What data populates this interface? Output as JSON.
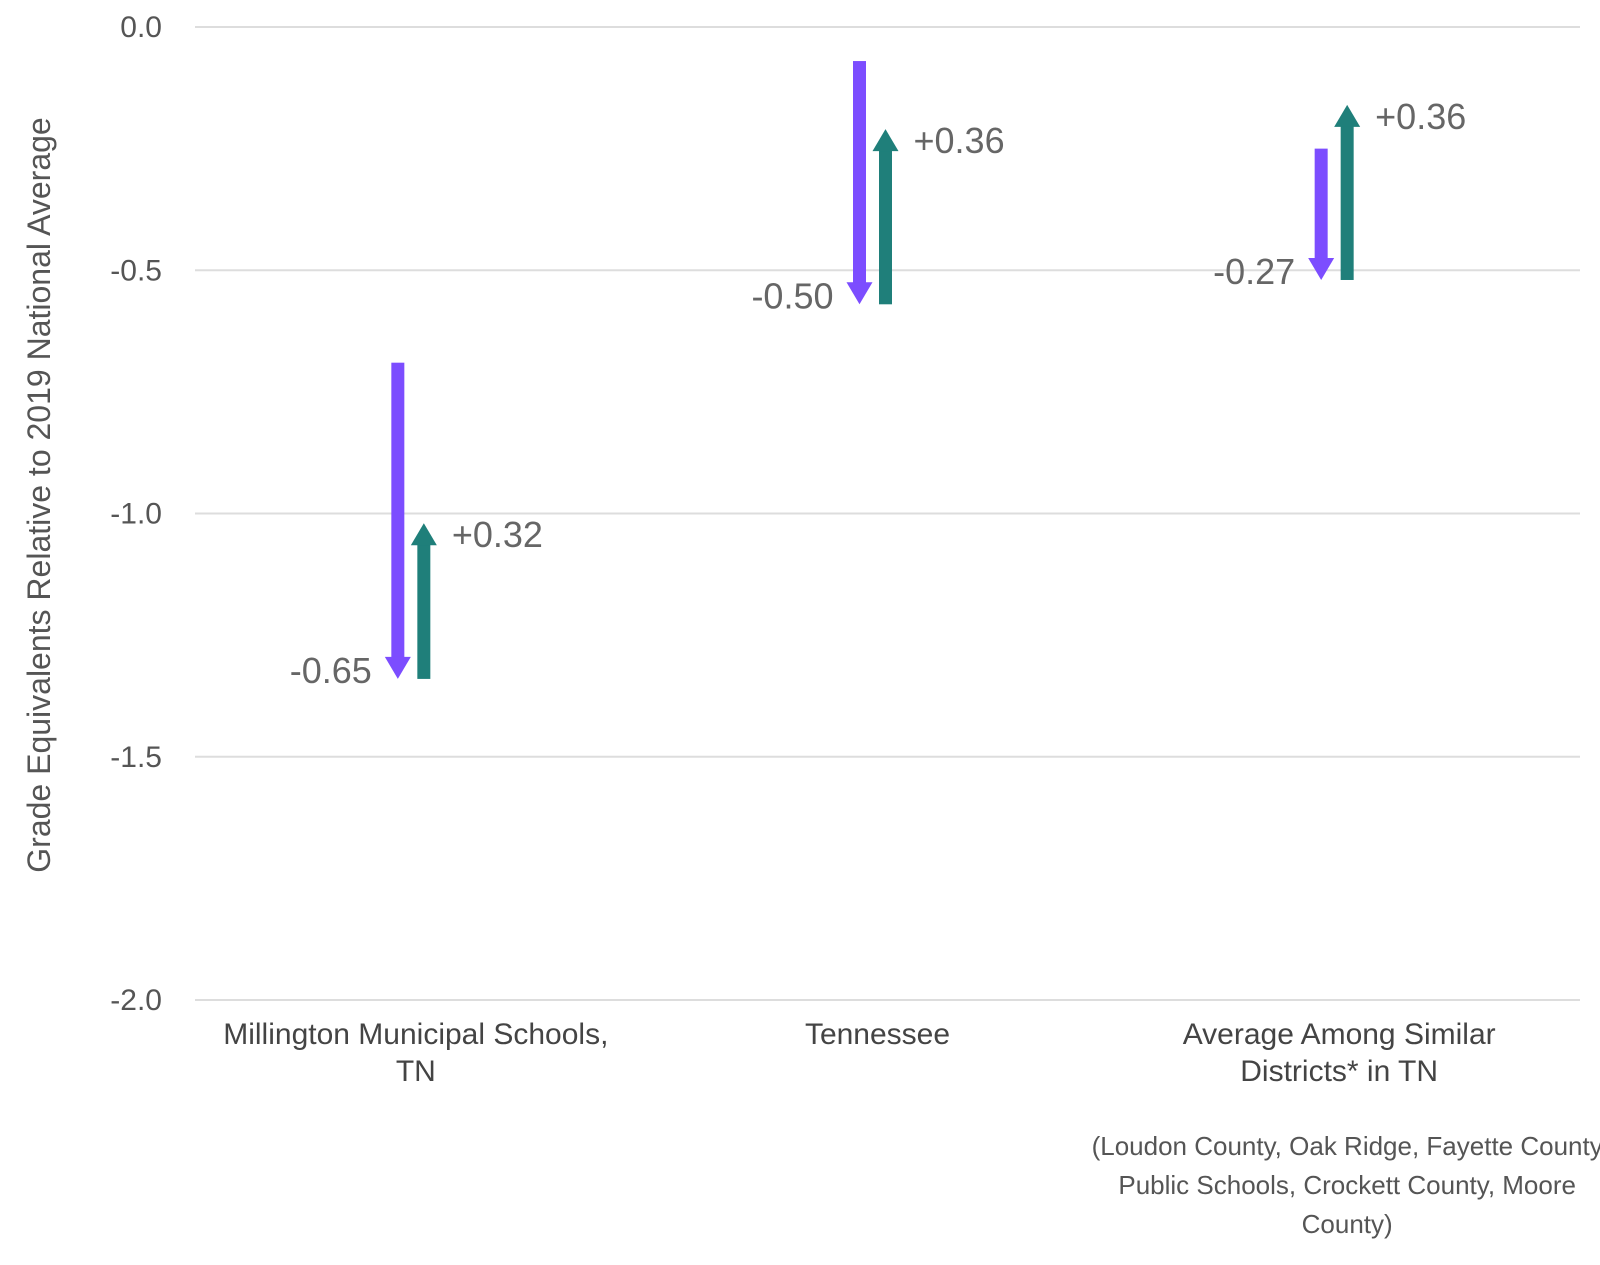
{
  "chart_data": {
    "type": "arrow",
    "title": "",
    "ylabel": "Grade Equivalents Relative to 2019 National Average",
    "ylim": [
      -2.0,
      0.0
    ],
    "yticks": [
      "0.0",
      "-0.5",
      "-1.0",
      "-1.5",
      "-2.0"
    ],
    "grid": true,
    "colors": {
      "decline": "#7c4dff",
      "recovery": "#1f7f7a"
    },
    "categories": [
      {
        "label_lines": [
          "Millington Municipal Schools,",
          "TN"
        ],
        "note_lines": [],
        "decline": {
          "from": -0.69,
          "to": -1.34,
          "label": "-0.65"
        },
        "recovery": {
          "from": -1.34,
          "to": -1.02,
          "label": "+0.32"
        }
      },
      {
        "label_lines": [
          "Tennessee"
        ],
        "note_lines": [],
        "decline": {
          "from": -0.07,
          "to": -0.57,
          "label": "-0.50"
        },
        "recovery": {
          "from": -0.57,
          "to": -0.21,
          "label": "+0.36"
        }
      },
      {
        "label_lines": [
          "Average Among Similar",
          "Districts* in TN"
        ],
        "note_lines": [
          "(Loudon County, Oak Ridge, Fayette County",
          "Public Schools, Crockett County, Moore",
          "County)"
        ],
        "decline": {
          "from": -0.25,
          "to": -0.52,
          "label": "-0.27"
        },
        "recovery": {
          "from": -0.52,
          "to": -0.16,
          "label": "+0.36"
        }
      }
    ]
  }
}
